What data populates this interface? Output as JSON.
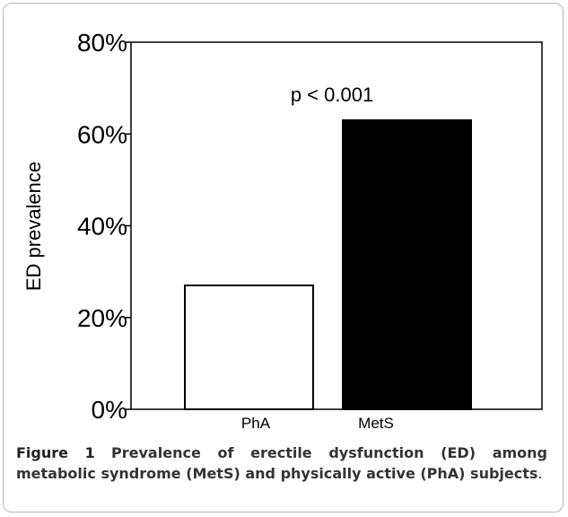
{
  "chart_data": {
    "type": "bar",
    "categories": [
      "PhA",
      "MetS"
    ],
    "values": [
      27,
      63
    ],
    "ylabel": "ED prevalence",
    "xlabel": "",
    "ylim": [
      0,
      80
    ],
    "yticks": [
      "0%",
      "20%",
      "40%",
      "60%",
      "80%"
    ],
    "bar_colors": [
      "#ffffff",
      "#000000"
    ],
    "annotation": "p < 0.001",
    "grid": false
  },
  "caption": {
    "label": "Figure 1",
    "text": "Prevalence of erectile dysfunction (ED) among metabolic syndrome (MetS) and physically active (PhA) subjects",
    "end": "."
  }
}
